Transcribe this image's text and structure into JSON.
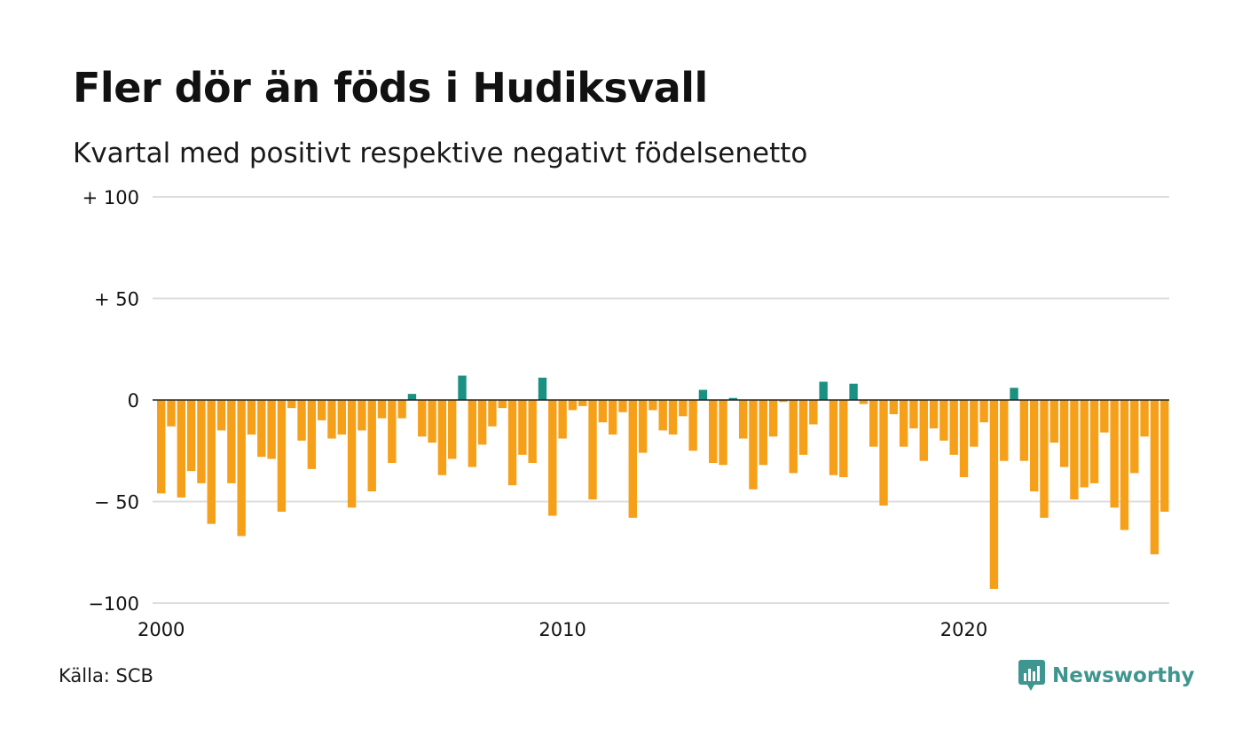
{
  "title": "Fler dör än föds i Hudiksvall",
  "subtitle": "Kvartal med positivt respektive negativt födelsenetto",
  "source": "Källa: SCB",
  "brand": "Newsworthy",
  "colors": {
    "positive": "#1a9082",
    "negative": "#f6a01a",
    "grid": "#dddddd",
    "zero": "#222222",
    "brand": "#3f958f"
  },
  "chart_data": {
    "type": "bar",
    "x_start_year": 2000,
    "quarters_per_year": 4,
    "ylim": [
      -100,
      100
    ],
    "yticks": [
      100,
      50,
      0,
      -50,
      -100
    ],
    "ytick_labels": [
      "+ 100",
      "+  50",
      "0",
      "− 50",
      "−100"
    ],
    "xticks": [
      2000,
      2010,
      2020
    ],
    "xtick_labels": [
      "2000",
      "2010",
      "2020"
    ],
    "grid": true,
    "values": [
      -46,
      -13,
      -48,
      -35,
      -41,
      -61,
      -15,
      -41,
      -67,
      -17,
      -28,
      -29,
      -55,
      -4,
      -20,
      -34,
      -10,
      -19,
      -17,
      -53,
      -15,
      -45,
      -9,
      -31,
      -9,
      3,
      -18,
      -21,
      -37,
      -29,
      12,
      -33,
      -22,
      -13,
      -4,
      -42,
      -27,
      -31,
      11,
      -57,
      -19,
      -5,
      -3,
      -49,
      -11,
      -17,
      -6,
      -58,
      -26,
      -5,
      -15,
      -17,
      -8,
      -25,
      5,
      -31,
      -32,
      1,
      -19,
      -44,
      -32,
      -18,
      -1,
      -36,
      -27,
      -12,
      9,
      -37,
      -38,
      8,
      -2,
      -23,
      -52,
      -7,
      -23,
      -14,
      -30,
      -14,
      -20,
      -27,
      -38,
      -23,
      -11,
      -93,
      -30,
      6,
      -30,
      -45,
      -58,
      -21,
      -33,
      -49,
      -43,
      -41,
      -16,
      -53,
      -64,
      -36,
      -18,
      -76,
      -55
    ]
  }
}
